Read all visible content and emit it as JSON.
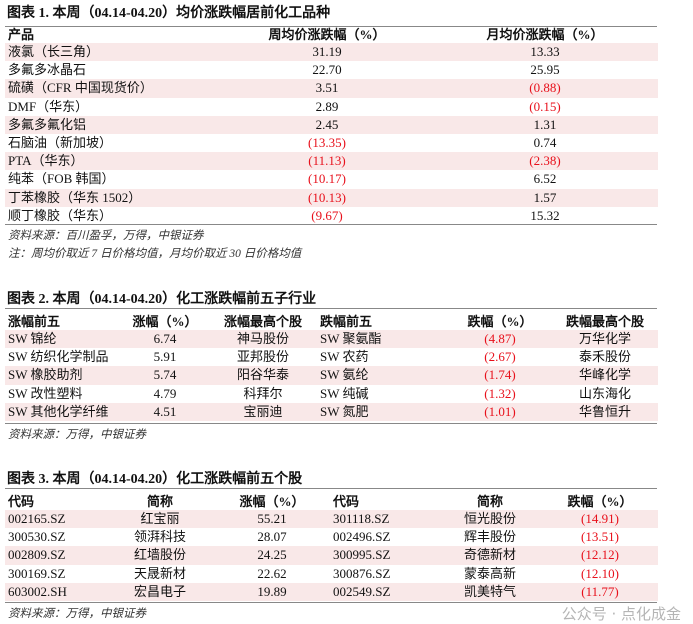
{
  "table1": {
    "title": "图表 1. 本周（04.14-04.20）均价涨跌幅居前化工品种",
    "headers": [
      "产品",
      "周均价涨跌幅（%）",
      "月均价涨跌幅（%）"
    ],
    "rows": [
      [
        "液氯（长三角）",
        "31.19",
        "13.33"
      ],
      [
        "多氟多冰晶石",
        "22.70",
        "25.95"
      ],
      [
        "硫磺（CFR 中国现货价）",
        "3.51",
        "(0.88)"
      ],
      [
        "DMF（华东）",
        "2.89",
        "(0.15)"
      ],
      [
        "多氟多氟化铝",
        "2.45",
        "1.31"
      ],
      [
        "石脑油（新加坡）",
        "(13.35)",
        "0.74"
      ],
      [
        "PTA（华东）",
        "(11.13)",
        "(2.38)"
      ],
      [
        "纯苯（FOB 韩国）",
        "(10.17)",
        "6.52"
      ],
      [
        "丁苯橡胶（华东 1502）",
        "(10.13)",
        "1.57"
      ],
      [
        "顺丁橡胶（华东）",
        "(9.67)",
        "15.32"
      ]
    ],
    "source": "资料来源：百川盈孚，万得，中银证券",
    "note": "注：周均价取近 7 日价格均值，月均价取近 30 日价格均值"
  },
  "table2": {
    "title": "图表 2. 本周（04.14-04.20）化工涨跌幅前五子行业",
    "headers": [
      "涨幅前五",
      "涨幅（%）",
      "涨幅最高个股",
      "跌幅前五",
      "跌幅（%）",
      "跌幅最高个股"
    ],
    "rows": [
      [
        "SW 锦纶",
        "6.74",
        "神马股份",
        "SW 聚氨酯",
        "(4.87)",
        "万华化学"
      ],
      [
        "SW 纺织化学制品",
        "5.91",
        "亚邦股份",
        "SW 农药",
        "(2.67)",
        "泰禾股份"
      ],
      [
        "SW 橡胶助剂",
        "5.74",
        "阳谷华泰",
        "SW 氨纶",
        "(1.74)",
        "华峰化学"
      ],
      [
        "SW 改性塑料",
        "4.79",
        "科拜尔",
        "SW 纯碱",
        "(1.32)",
        "山东海化"
      ],
      [
        "SW 其他化学纤维",
        "4.51",
        "宝丽迪",
        "SW 氮肥",
        "(1.01)",
        "华鲁恒升"
      ]
    ],
    "source": "资料来源：万得，中银证券"
  },
  "table3": {
    "title": "图表 3. 本周（04.14-04.20）化工涨跌幅前五个股",
    "headers": [
      "代码",
      "简称",
      "涨幅（%）",
      "代码",
      "简称",
      "跌幅（%）"
    ],
    "rows": [
      [
        "002165.SZ",
        "红宝丽",
        "55.21",
        "301118.SZ",
        "恒光股份",
        "(14.91)"
      ],
      [
        "300530.SZ",
        "领湃科技",
        "28.07",
        "002496.SZ",
        "辉丰股份",
        "(13.51)"
      ],
      [
        "002809.SZ",
        "红墙股份",
        "24.25",
        "300995.SZ",
        "奇德新材",
        "(12.12)"
      ],
      [
        "300169.SZ",
        "天晟新材",
        "22.62",
        "300876.SZ",
        "蒙泰高新",
        "(12.10)"
      ],
      [
        "603002.SH",
        "宏昌电子",
        "19.89",
        "002549.SZ",
        "凯美特气",
        "(11.77)"
      ]
    ],
    "source": "资料来源：万得，中银证券"
  },
  "watermark": "公众号 · 点化成金",
  "colors": {
    "negative": "#e8101b",
    "stripe": "#f9e8e8"
  }
}
